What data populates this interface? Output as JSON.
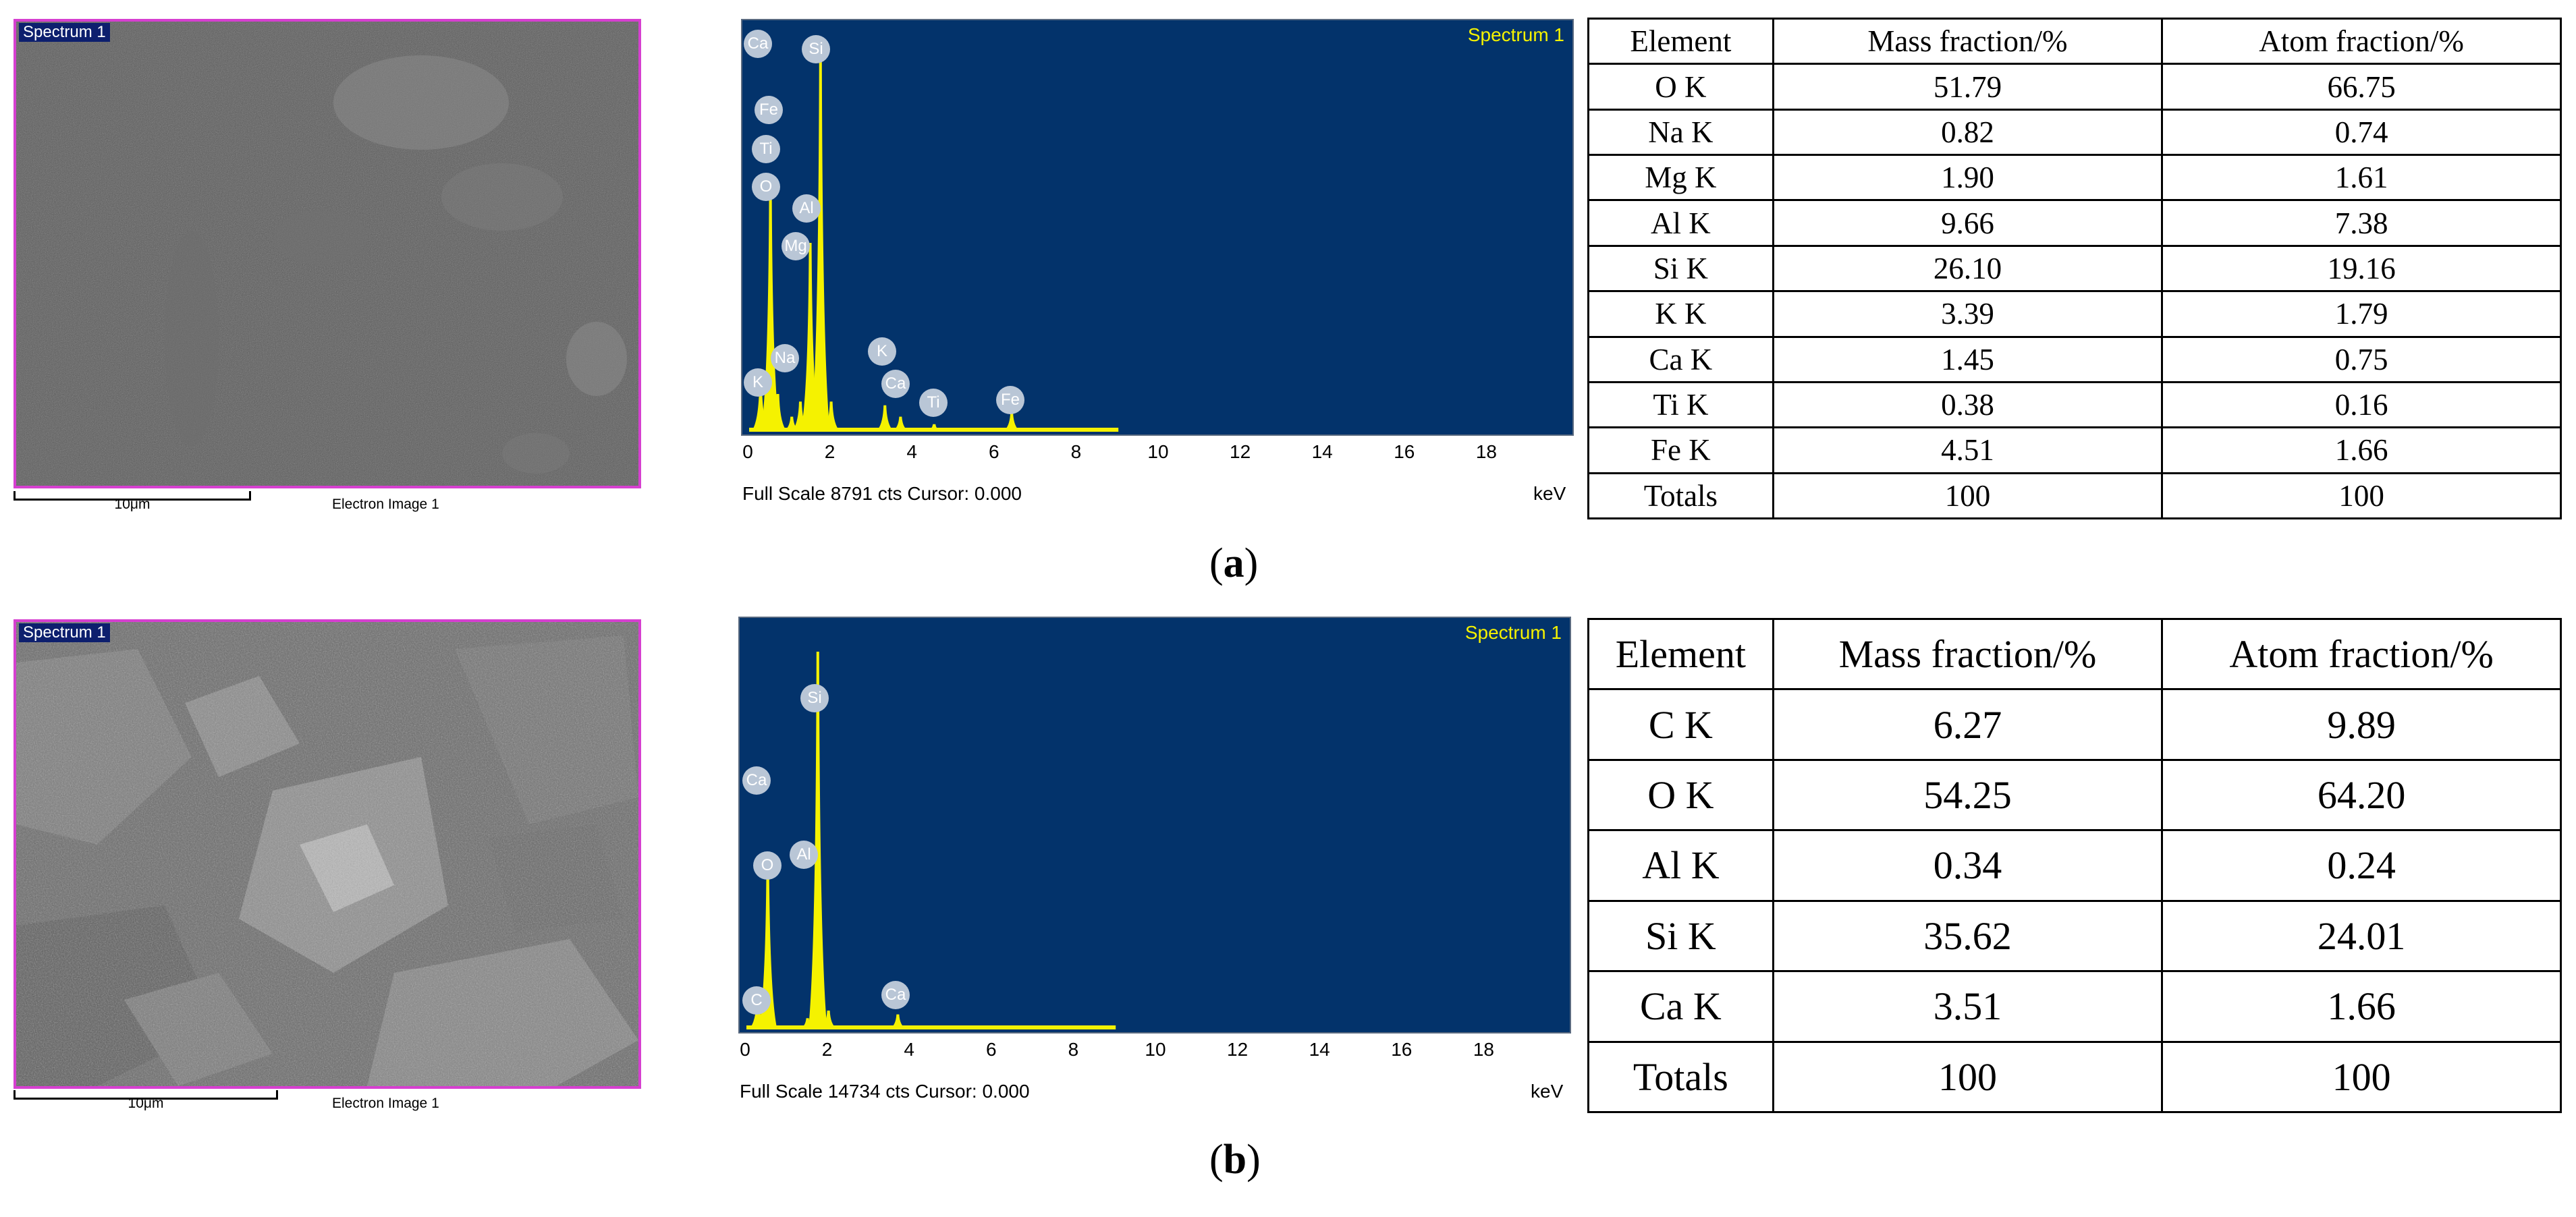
{
  "panels": [
    {
      "caption_letter": "a",
      "sem": {
        "label": "Spectrum 1",
        "scale": "10μm",
        "caption": "Electron Image 1"
      },
      "spectrum": {
        "title": "Spectrum 1",
        "footer": "Full Scale 8791 cts Cursor: 0.000",
        "unit": "keV",
        "peak_labels": [
          "Ca",
          "Si",
          "Fe",
          "Ti",
          "O",
          "Al",
          "Mg",
          "Na",
          "K",
          "K",
          "Ca",
          "Ti",
          "Fe"
        ]
      },
      "table": {
        "headers": [
          "Element",
          "Mass fraction/%",
          "Atom fraction/%"
        ],
        "rows": [
          [
            "O K",
            "51.79",
            "66.75"
          ],
          [
            "Na K",
            "0.82",
            "0.74"
          ],
          [
            "Mg K",
            "1.90",
            "1.61"
          ],
          [
            "Al K",
            "9.66",
            "7.38"
          ],
          [
            "Si K",
            "26.10",
            "19.16"
          ],
          [
            "K K",
            "3.39",
            "1.79"
          ],
          [
            "Ca K",
            "1.45",
            "0.75"
          ],
          [
            "Ti K",
            "0.38",
            "0.16"
          ],
          [
            "Fe K",
            "4.51",
            "1.66"
          ],
          [
            "Totals",
            "100",
            "100"
          ]
        ]
      }
    },
    {
      "caption_letter": "b",
      "sem": {
        "label": "Spectrum 1",
        "scale": "10μm",
        "caption": "Electron Image 1"
      },
      "spectrum": {
        "title": "Spectrum 1",
        "footer": "Full Scale 14734 cts Cursor: 0.000",
        "unit": "keV",
        "peak_labels": [
          "Si",
          "Ca",
          "Al",
          "O",
          "C",
          "Ca"
        ]
      },
      "table": {
        "headers": [
          "Element",
          "Mass fraction/%",
          "Atom fraction/%"
        ],
        "rows": [
          [
            "C K",
            "6.27",
            "9.89"
          ],
          [
            "O K",
            "54.25",
            "64.20"
          ],
          [
            "Al K",
            "0.34",
            "0.24"
          ],
          [
            "Si K",
            "35.62",
            "24.01"
          ],
          [
            "Ca K",
            "3.51",
            "1.66"
          ],
          [
            "Totals",
            "100",
            "100"
          ]
        ]
      }
    }
  ],
  "chart_data": [
    {
      "type": "line",
      "title": "Spectrum 1",
      "xlabel": "keV",
      "ylabel": "",
      "xlim": [
        0,
        20
      ],
      "x_ticks": [
        "0",
        "2",
        "4",
        "6",
        "8",
        "10",
        "12",
        "14",
        "16",
        "18"
      ],
      "series": [
        {
          "x": [
            0.28,
            0.52,
            0.7,
            1.04,
            1.25,
            1.49,
            1.74,
            2.0,
            3.31,
            3.69,
            4.51,
            6.4
          ],
          "values": [
            0.12,
            0.65,
            0.1,
            0.04,
            0.08,
            0.5,
            1.0,
            0.08,
            0.07,
            0.04,
            0.02,
            0.05
          ]
        }
      ]
    },
    {
      "type": "line",
      "title": "Spectrum 1",
      "xlabel": "keV",
      "ylabel": "",
      "xlim": [
        0,
        20
      ],
      "x_ticks": [
        "0",
        "2",
        "4",
        "6",
        "8",
        "10",
        "12",
        "14",
        "16",
        "18"
      ],
      "series": [
        {
          "x": [
            0.28,
            0.52,
            1.49,
            1.74,
            2.0,
            3.69
          ],
          "values": [
            0.08,
            0.45,
            0.03,
            1.0,
            0.05,
            0.04
          ]
        }
      ]
    }
  ]
}
